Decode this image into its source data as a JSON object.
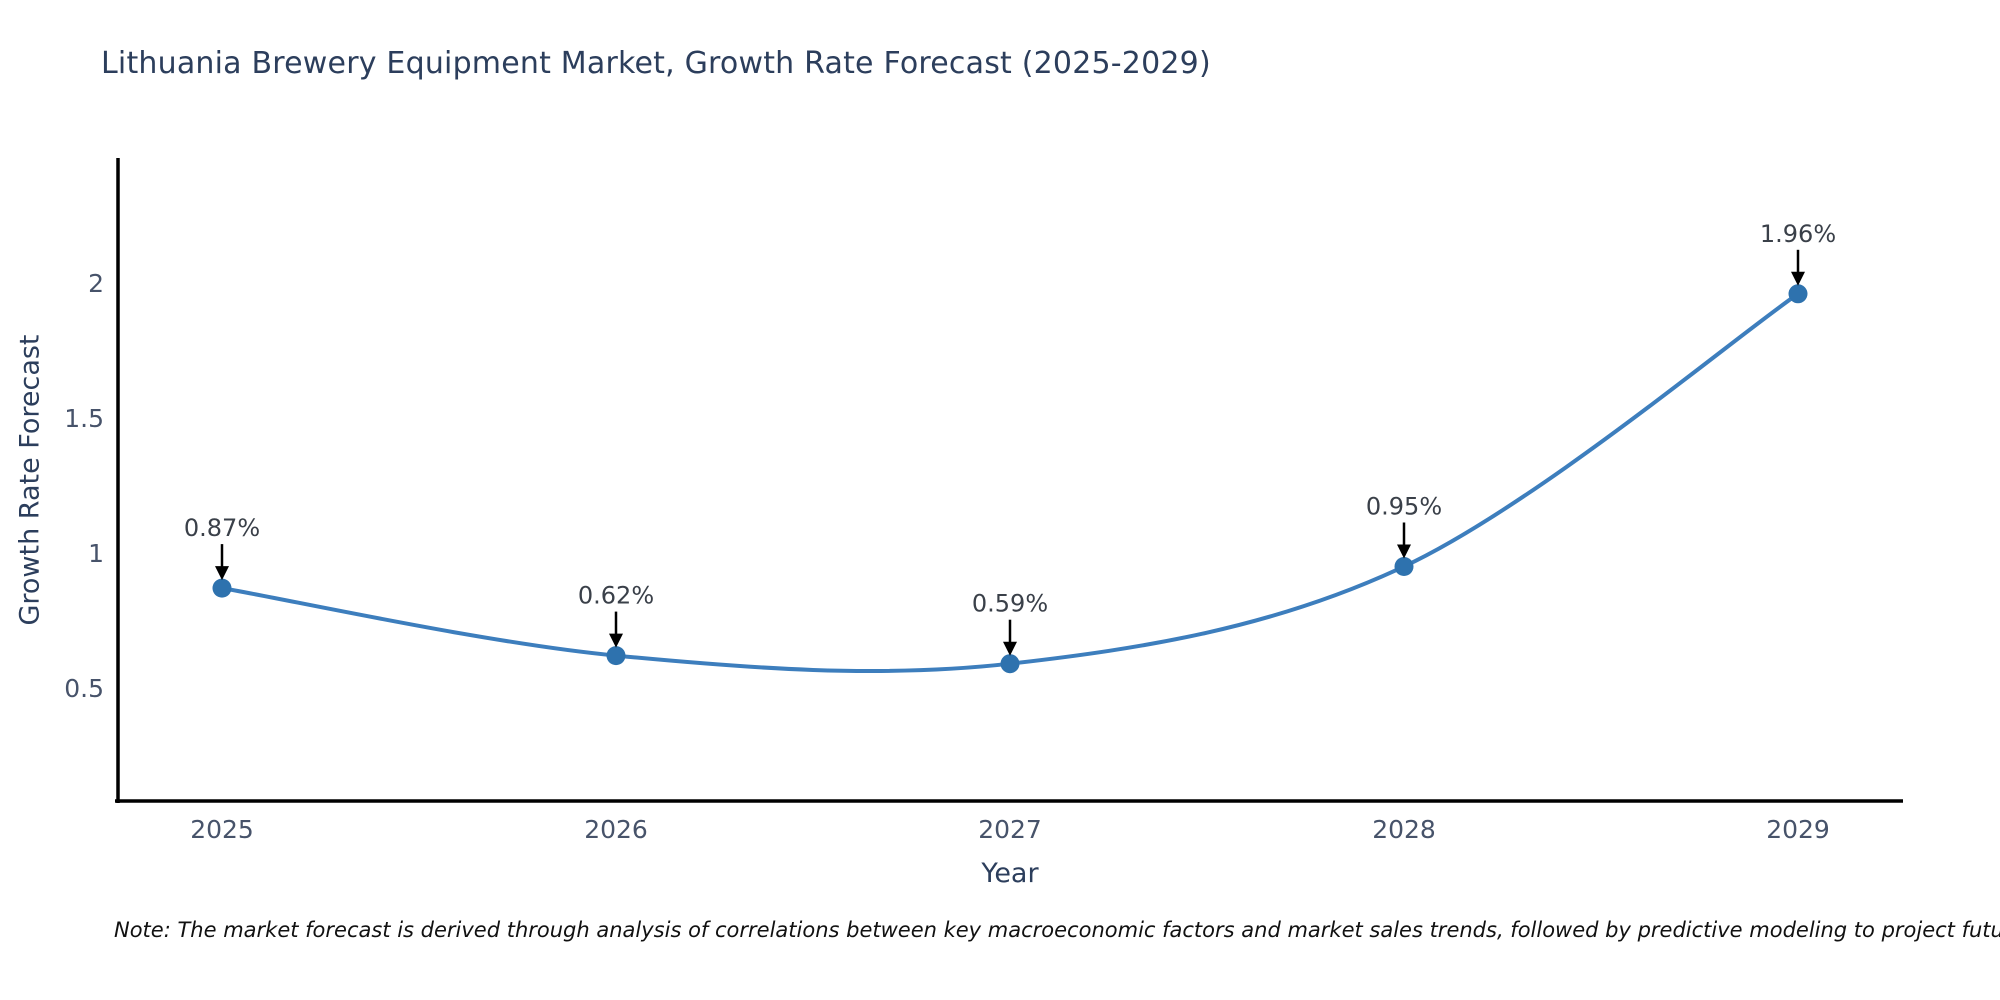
{
  "title": "Lithuania Brewery Equipment Market, Growth Rate Forecast (2025-2029)",
  "note": "Note: The market forecast is derived through analysis of correlations between key macroeconomic factors and market sales trends, followed by predictive modeling to project future sales",
  "chart_data": {
    "type": "line",
    "title": "Lithuania Brewery Equipment Market, Growth Rate Forecast (2025-2029)",
    "xlabel": "Year",
    "ylabel": "Growth Rate Forecast",
    "categories": [
      "2025",
      "2026",
      "2027",
      "2028",
      "2029"
    ],
    "x": [
      2025,
      2026,
      2027,
      2028,
      2029
    ],
    "values": [
      0.87,
      0.62,
      0.59,
      0.95,
      1.96
    ],
    "point_labels": [
      "0.87%",
      "0.62%",
      "0.59%",
      "0.95%",
      "1.96%"
    ],
    "yticks": [
      0.5,
      1,
      1.5,
      2
    ],
    "ylim": [
      0.08,
      2.46
    ],
    "grid": false,
    "legend_position": "none",
    "smooth": true,
    "line_color": "#3d7ebd",
    "marker_color": "#2e72ae",
    "axis_color": "#000000",
    "annotation_arrow_color": "#000000"
  }
}
